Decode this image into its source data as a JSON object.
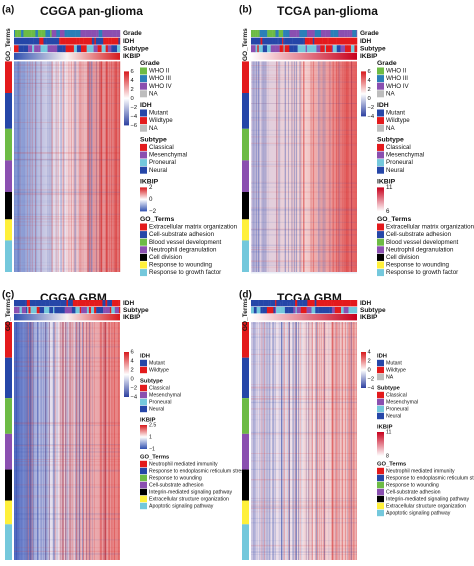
{
  "panels": [
    {
      "label": "(a)",
      "title": "CGGA pan-glioma",
      "side_label": "GO_Terms",
      "tracks": [
        "Grade",
        "IDH",
        "Subtype",
        "IKBIP"
      ],
      "scale": [
        "6",
        "4",
        "2",
        "0",
        "−2",
        "−4",
        "−6"
      ],
      "legends": [
        {
          "title": "Grade",
          "items": [
            "WHO II",
            "WHO III",
            "WHO IV",
            "NA"
          ]
        },
        {
          "title": "IDH",
          "items": [
            "Mutant",
            "Wildtype",
            "NA"
          ]
        },
        {
          "title": "Subtype",
          "items": [
            "Classical",
            "Mesenchymal",
            "Proneural",
            "Neural"
          ]
        },
        {
          "title": "IKBIP",
          "scale": [
            "2",
            "0",
            "−2"
          ]
        },
        {
          "title": "GO_Terms",
          "items": [
            "Extracellular matrix organization",
            "Cell-substrate adhesion",
            "Blood vessel development",
            "Neutrophil degranulation",
            "Cell division",
            "Response to wounding",
            "Response to growth factor"
          ]
        }
      ]
    },
    {
      "label": "(b)",
      "title": "TCGA pan-glioma",
      "side_label": "GO_Terms",
      "tracks": [
        "Grade",
        "IDH",
        "Subtype",
        "IKBIP"
      ],
      "scale": [
        "6",
        "4",
        "2",
        "0",
        "−2",
        "−4"
      ],
      "legends": [
        {
          "title": "Grade",
          "items": [
            "WHO II",
            "WHO III",
            "WHO IV",
            "NA"
          ]
        },
        {
          "title": "IDH",
          "items": [
            "Mutant",
            "Wildtype",
            "NA"
          ]
        },
        {
          "title": "Subtype",
          "items": [
            "Classical",
            "Mesenchymal",
            "Proneural",
            "Neural"
          ]
        },
        {
          "title": "IKBIP",
          "scale": [
            "11",
            "6"
          ]
        },
        {
          "title": "GO_Terms",
          "items": [
            "Extracellular matrix organization",
            "Cell-substrate adhesion",
            "Blood vessel development",
            "Neutrophil degranulation",
            "Cell division",
            "Response to wounding",
            "Response to growth factor"
          ]
        }
      ]
    },
    {
      "label": "(c)",
      "title": "CGGA GBM",
      "side_label": "GO_Terms",
      "tracks": [
        "IDH",
        "Subtype",
        "IKBIP"
      ],
      "scale": [
        "6",
        "4",
        "2",
        "0",
        "−2",
        "−4"
      ],
      "legends": [
        {
          "title": "IDH",
          "items": [
            "Mutant",
            "Wildtype"
          ]
        },
        {
          "title": "Subtype",
          "items": [
            "Classical",
            "Mesenchymal",
            "Proneural",
            "Neural"
          ]
        },
        {
          "title": "IKBIP",
          "scale": [
            "2.5",
            "1",
            "−1"
          ]
        },
        {
          "title": "GO_Terms",
          "items": [
            "Neutrophil mediated immunity",
            "Response to endoplasmic reticulum stress",
            "Response to wounding",
            "Cell-substrate adhesion",
            "Integrin-mediated signaling pathway",
            "Extracellular structure organization",
            "Apoptotic signaling pathway"
          ]
        }
      ]
    },
    {
      "label": "(d)",
      "title": "TCGA GBM",
      "side_label": "GO_Terms",
      "tracks": [
        "IDH",
        "Subtype",
        "IKBIP"
      ],
      "scale": [
        "4",
        "2",
        "0",
        "−2",
        "−4"
      ],
      "legends": [
        {
          "title": "IDH",
          "items": [
            "Mutant",
            "Wildtype",
            "NA"
          ]
        },
        {
          "title": "Subtype",
          "items": [
            "Classical",
            "Mesenchymal",
            "Proneural",
            "Neural"
          ]
        },
        {
          "title": "IKBIP",
          "scale": [
            "11",
            "8"
          ]
        },
        {
          "title": "GO_Terms",
          "items": [
            "Neutrophil mediated immunity",
            "Response to endoplasmic reticulum stress",
            "Response to wounding",
            "Cell-substrate adhesion",
            "Integrin-mediated signaling pathway",
            "Extracellular structure organization",
            "Apoptotic signaling pathway"
          ]
        }
      ]
    }
  ]
}
